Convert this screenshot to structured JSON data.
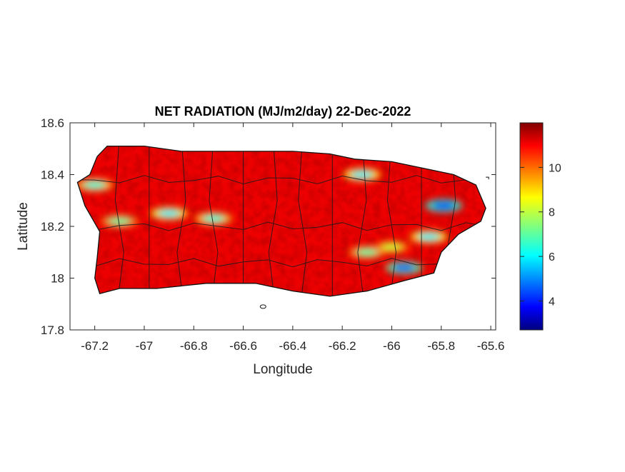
{
  "title": "NET RADIATION (MJ/m2/day) 22-Dec-2022",
  "xlabel": "Longitude",
  "ylabel": "Latitude",
  "x_ticks": [
    "-67.2",
    "-67",
    "-66.8",
    "-66.6",
    "-66.4",
    "-66.2",
    "-66",
    "-65.8",
    "-65.6"
  ],
  "y_ticks": [
    "18.6",
    "18.4",
    "18.2",
    "18",
    "17.8"
  ],
  "colorbar_ticks": [
    "10",
    "8",
    "6",
    "4"
  ],
  "chart_data": {
    "type": "heatmap",
    "title": "NET RADIATION (MJ/m2/day) 22-Dec-2022",
    "xlabel": "Longitude",
    "ylabel": "Latitude",
    "xlim": [
      -67.3,
      -65.58
    ],
    "ylim": [
      17.8,
      18.6
    ],
    "x_tick_values": [
      -67.2,
      -67,
      -66.8,
      -66.6,
      -66.4,
      -66.2,
      -66,
      -65.8,
      -65.6
    ],
    "y_tick_values": [
      18.6,
      18.4,
      18.2,
      18,
      17.8
    ],
    "colormap": "jet",
    "clim": [
      2.7,
      12
    ],
    "colorbar_tick_values": [
      10,
      8,
      6,
      4
    ],
    "grid": false,
    "region": "Puerto Rico",
    "outline": [
      [
        -67.27,
        18.37
      ],
      [
        -67.22,
        18.4
      ],
      [
        -67.19,
        18.47
      ],
      [
        -67.15,
        18.51
      ],
      [
        -67.0,
        18.51
      ],
      [
        -66.85,
        18.49
      ],
      [
        -66.6,
        18.49
      ],
      [
        -66.4,
        18.49
      ],
      [
        -66.25,
        18.48
      ],
      [
        -66.15,
        18.46
      ],
      [
        -66.0,
        18.45
      ],
      [
        -65.9,
        18.43
      ],
      [
        -65.75,
        18.4
      ],
      [
        -65.66,
        18.36
      ],
      [
        -65.62,
        18.27
      ],
      [
        -65.64,
        18.22
      ],
      [
        -65.73,
        18.17
      ],
      [
        -65.8,
        18.1
      ],
      [
        -65.83,
        18.02
      ],
      [
        -65.95,
        17.99
      ],
      [
        -66.1,
        17.95
      ],
      [
        -66.25,
        17.93
      ],
      [
        -66.4,
        17.95
      ],
      [
        -66.55,
        17.98
      ],
      [
        -66.75,
        17.98
      ],
      [
        -66.95,
        17.96
      ],
      [
        -67.1,
        17.96
      ],
      [
        -67.18,
        17.94
      ],
      [
        -67.2,
        18.0
      ],
      [
        -67.19,
        18.08
      ],
      [
        -67.18,
        18.18
      ],
      [
        -67.24,
        18.28
      ]
    ],
    "low_value_features": [
      {
        "lon": -66.72,
        "lat": 18.23,
        "value": 6.5
      },
      {
        "lon": -66.9,
        "lat": 18.25,
        "value": 6
      },
      {
        "lon": -67.1,
        "lat": 18.22,
        "value": 7
      },
      {
        "lon": -67.2,
        "lat": 18.36,
        "value": 6.5
      },
      {
        "lon": -66.12,
        "lat": 18.4,
        "value": 6
      },
      {
        "lon": -65.79,
        "lat": 18.28,
        "value": 4
      },
      {
        "lon": -65.95,
        "lat": 18.04,
        "value": 4.5
      },
      {
        "lon": -66.1,
        "lat": 18.1,
        "value": 7
      },
      {
        "lon": -66.0,
        "lat": 18.12,
        "value": 8
      },
      {
        "lon": -65.85,
        "lat": 18.16,
        "value": 6
      }
    ]
  }
}
